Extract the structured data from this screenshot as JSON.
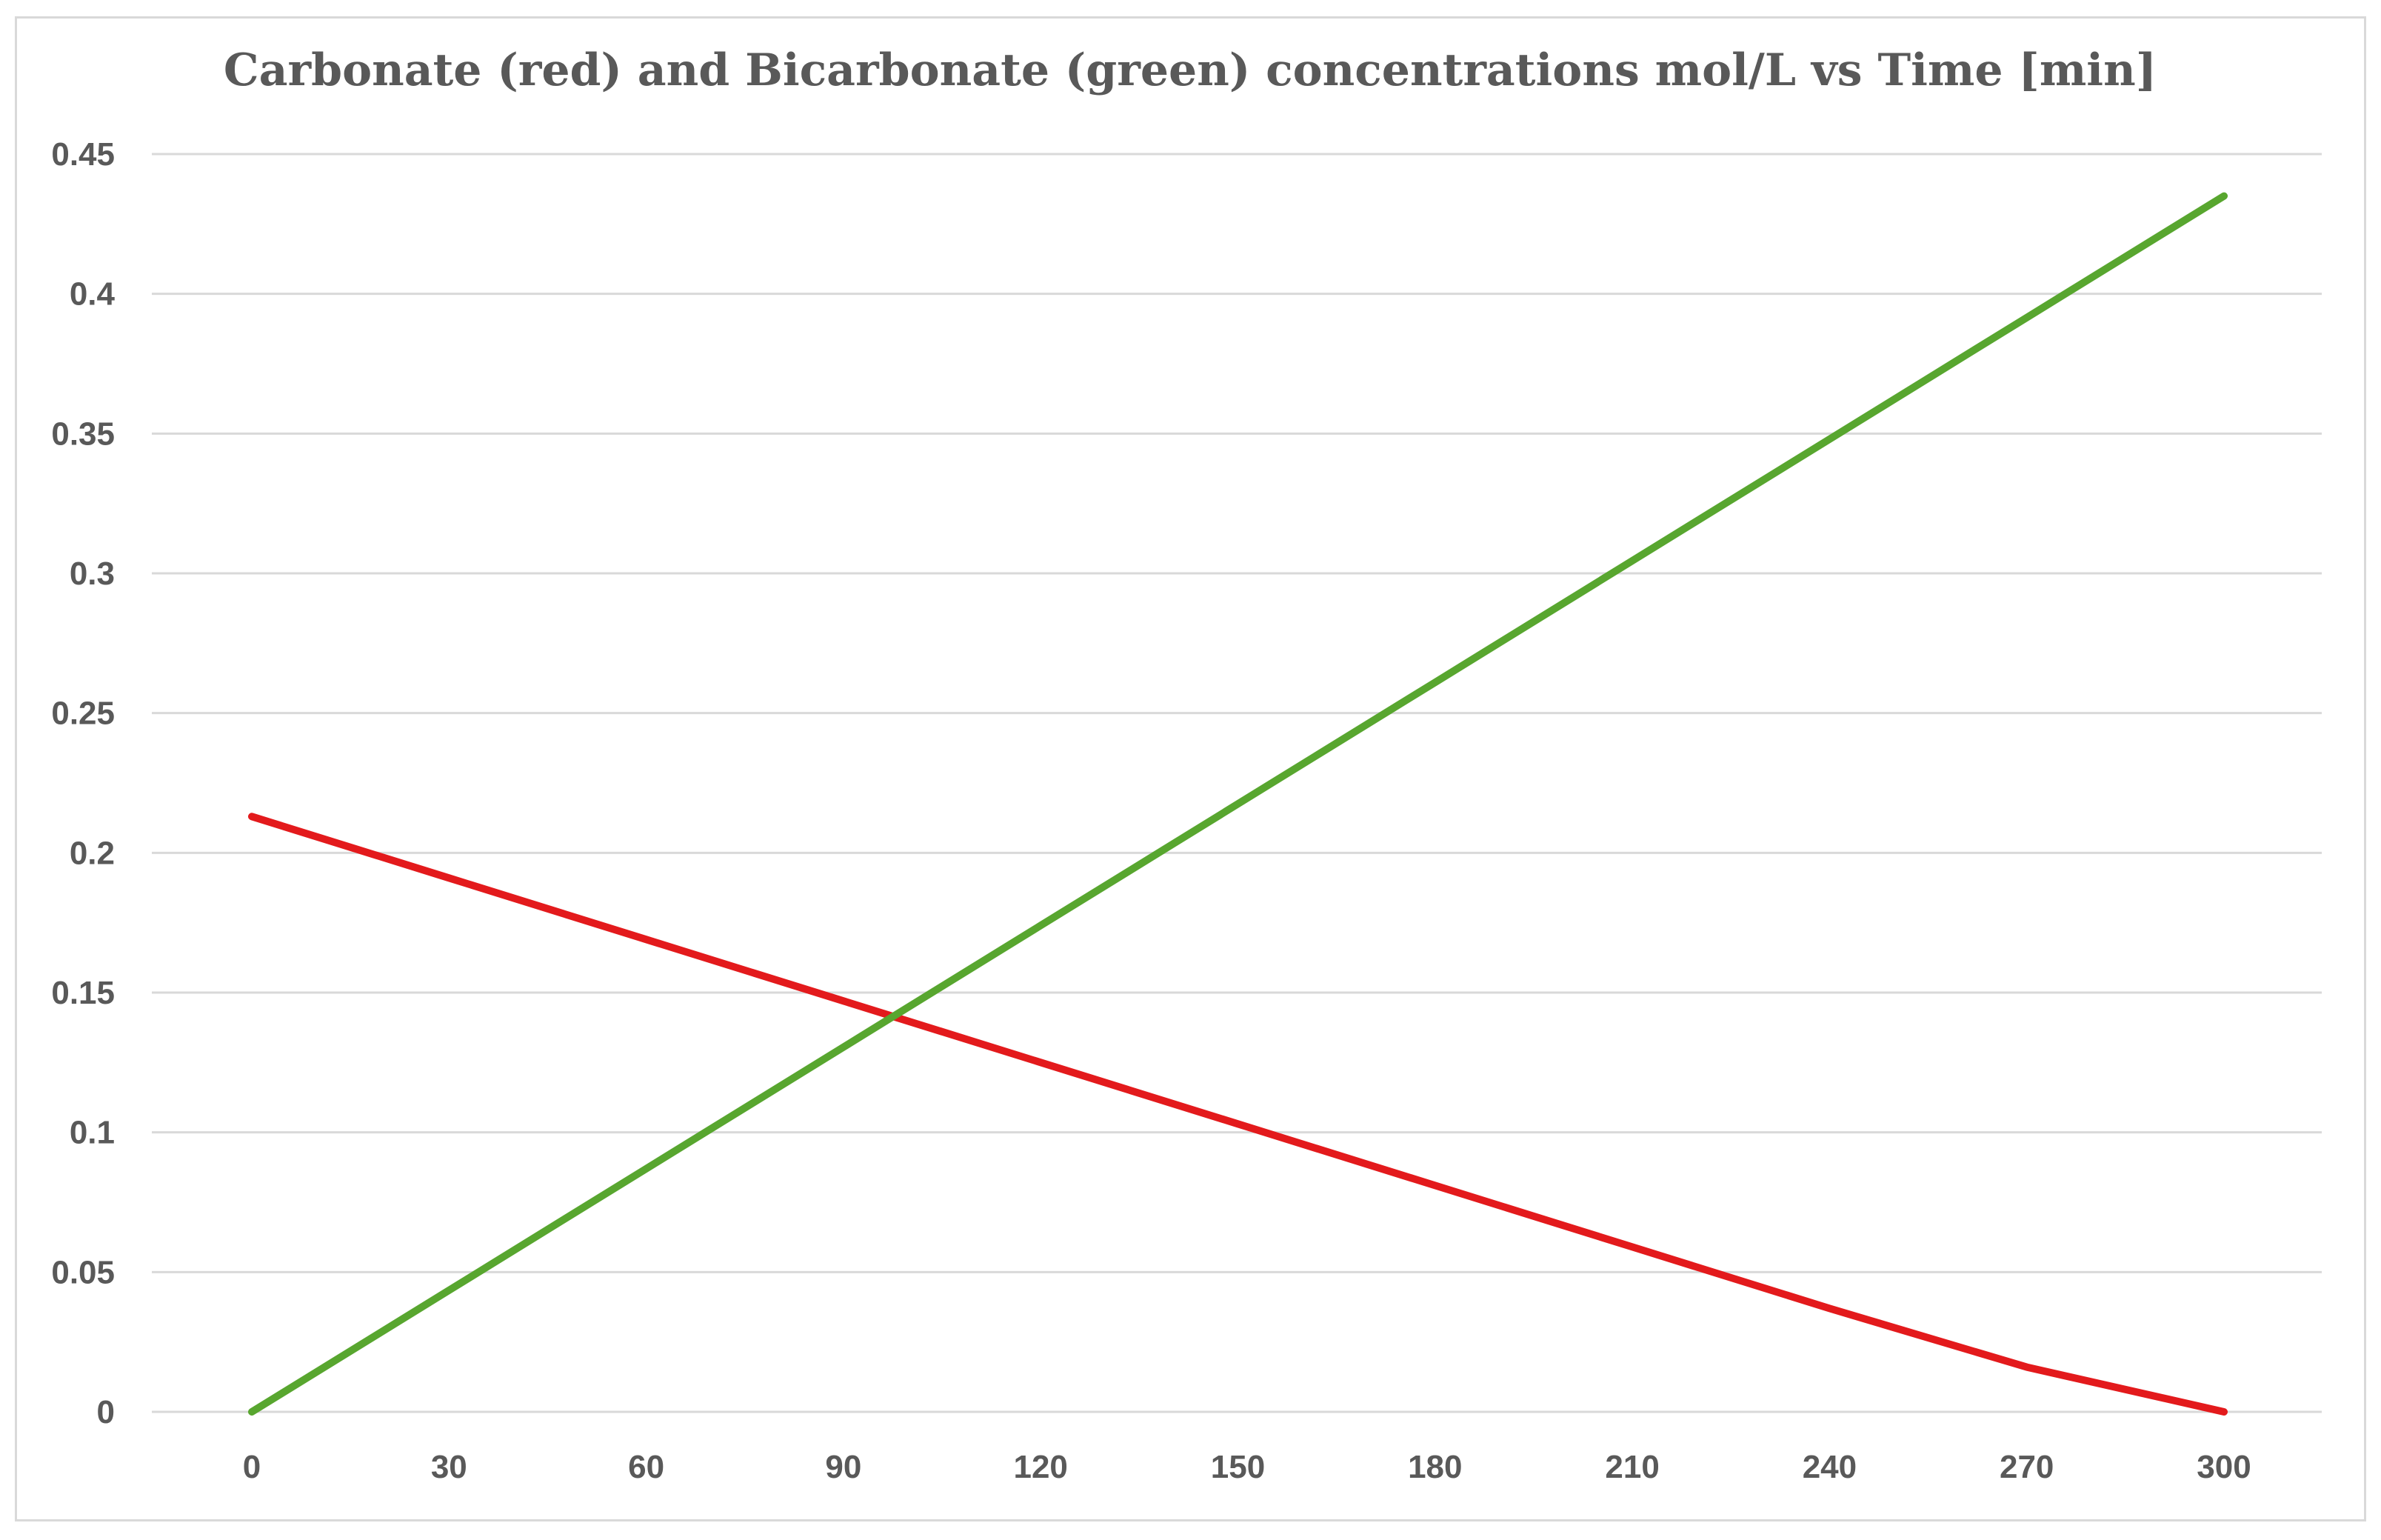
{
  "chart_data": {
    "type": "line",
    "title": "Carbonate (red) and Bicarbonate (green) concentrations mol/L vs Time [min]",
    "xlabel": "",
    "ylabel": "",
    "x": [
      0,
      30,
      60,
      90,
      120,
      150,
      180,
      210,
      240,
      270,
      300
    ],
    "x_tick_labels": [
      "0",
      "30",
      "60",
      "90",
      "120",
      "150",
      "180",
      "210",
      "240",
      "270",
      "300"
    ],
    "y_ticks": [
      0,
      0.05,
      0.1,
      0.15,
      0.2,
      0.25,
      0.3,
      0.35,
      0.4,
      0.45
    ],
    "y_tick_labels": [
      "0",
      "0.05",
      "0.1",
      "0.15",
      "0.2",
      "0.25",
      "0.3",
      "0.35",
      "0.4",
      "0.45"
    ],
    "xlim": [
      0,
      300
    ],
    "ylim": [
      0,
      0.45
    ],
    "grid": true,
    "legend": "none",
    "series": [
      {
        "color": "#e31a1c",
        "values": [
          0.213,
          0.191,
          0.169,
          0.147,
          0.125,
          0.103,
          0.081,
          0.059,
          0.037,
          0.016,
          0.0
        ]
      },
      {
        "color": "#58a62f",
        "values": [
          0.0,
          0.0435,
          0.087,
          0.1305,
          0.174,
          0.2175,
          0.261,
          0.3045,
          0.348,
          0.3915,
          0.435
        ]
      }
    ]
  }
}
